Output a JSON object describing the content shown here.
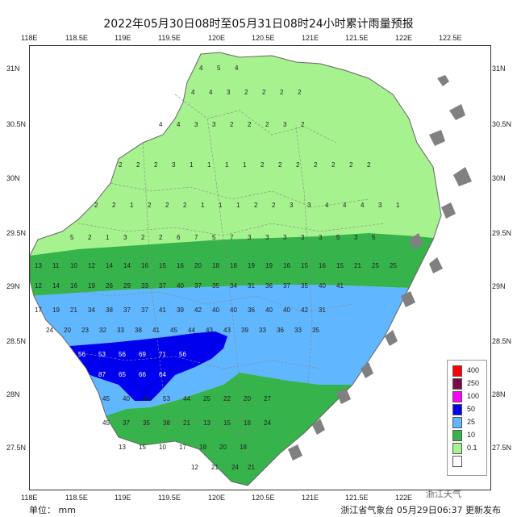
{
  "title": "2022年05月30日08时至05月31日08时24小时累计雨量预报",
  "axis": {
    "x_ticks": [
      "118E",
      "118.5E",
      "119E",
      "119.5E",
      "120E",
      "120.5E",
      "121E",
      "121.5E",
      "122E",
      "122.5E"
    ],
    "y_ticks": [
      "31N",
      "30.5N",
      "30N",
      "29.5N",
      "29N",
      "28.5N",
      "28N",
      "27.5N"
    ]
  },
  "legend": {
    "levels": [
      {
        "label": "400",
        "color": "#ff0000"
      },
      {
        "label": "250",
        "color": "#7b0a46"
      },
      {
        "label": "100",
        "color": "#ff00ff"
      },
      {
        "label": "50",
        "color": "#0000ee"
      },
      {
        "label": "25",
        "color": "#60b6ff"
      },
      {
        "label": "10",
        "color": "#36b34a"
      },
      {
        "label": "0.1",
        "color": "#a6f28e"
      },
      {
        "label": "",
        "color": "#ffffff"
      }
    ]
  },
  "colors": {
    "light_green": "#a6f28e",
    "green": "#36b34a",
    "light_blue": "#60b6ff",
    "blue": "#0000ee",
    "sea": "#ffffff",
    "islands": "#808080"
  },
  "footer": {
    "unit": "单位： mm",
    "issuer": "浙江省气象台  05月29日06:37 更新发布"
  },
  "watermark": "浙江天气"
}
